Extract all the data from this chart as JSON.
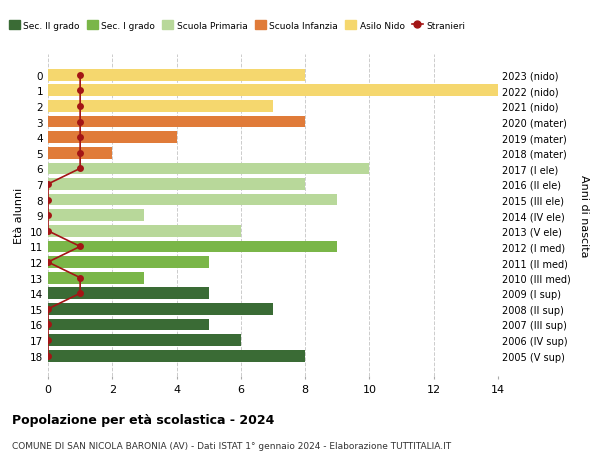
{
  "ages": [
    18,
    17,
    16,
    15,
    14,
    13,
    12,
    11,
    10,
    9,
    8,
    7,
    6,
    5,
    4,
    3,
    2,
    1,
    0
  ],
  "right_labels": [
    "2005 (V sup)",
    "2006 (IV sup)",
    "2007 (III sup)",
    "2008 (II sup)",
    "2009 (I sup)",
    "2010 (III med)",
    "2011 (II med)",
    "2012 (I med)",
    "2013 (V ele)",
    "2014 (IV ele)",
    "2015 (III ele)",
    "2016 (II ele)",
    "2017 (I ele)",
    "2018 (mater)",
    "2019 (mater)",
    "2020 (mater)",
    "2021 (nido)",
    "2022 (nido)",
    "2023 (nido)"
  ],
  "bar_values": [
    8,
    6,
    5,
    7,
    5,
    3,
    5,
    9,
    6,
    3,
    9,
    8,
    10,
    2,
    4,
    8,
    7,
    14,
    8
  ],
  "bar_colors": [
    "#3a6b35",
    "#3a6b35",
    "#3a6b35",
    "#3a6b35",
    "#3a6b35",
    "#7ab648",
    "#7ab648",
    "#7ab648",
    "#b8d89a",
    "#b8d89a",
    "#b8d89a",
    "#b8d89a",
    "#b8d89a",
    "#e07b39",
    "#e07b39",
    "#e07b39",
    "#f5d76e",
    "#f5d76e",
    "#f5d76e"
  ],
  "stranieri_values": [
    0,
    0,
    0,
    0,
    1,
    1,
    0,
    1,
    0,
    0,
    0,
    0,
    1,
    1,
    1,
    1,
    1,
    1,
    1
  ],
  "stranieri_x": [
    0,
    0,
    0,
    0,
    1,
    1,
    0,
    1,
    0,
    0,
    0,
    0,
    1,
    1,
    1,
    1,
    1,
    1,
    1
  ],
  "color_sec2": "#3a6b35",
  "color_sec1": "#7ab648",
  "color_primaria": "#b8d89a",
  "color_infanzia": "#e07b39",
  "color_nido": "#f5d76e",
  "color_stranieri": "#a31515",
  "title": "Popolazione per età scolastica - 2024",
  "subtitle": "COMUNE DI SAN NICOLA BARONIA (AV) - Dati ISTAT 1° gennaio 2024 - Elaborazione TUTTITALIA.IT",
  "xlabel_left": "Età alunni",
  "xlabel_right": "Anni di nascita",
  "xlim": [
    0,
    14
  ],
  "bg_color": "#ffffff",
  "grid_color": "#cccccc"
}
